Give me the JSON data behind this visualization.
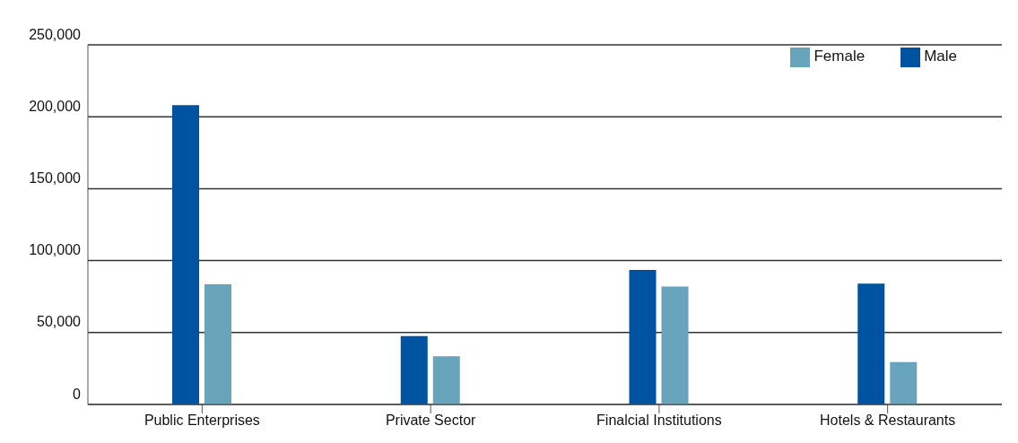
{
  "chart_data": {
    "type": "bar",
    "categories": [
      "Public Enterprises",
      "Private Sector",
      "Finalcial Institutions",
      "Hotels & Restaurants"
    ],
    "series": [
      {
        "name": "Male",
        "color": "#0053a0",
        "values": [
          208000,
          47500,
          93500,
          84000
        ]
      },
      {
        "name": "Female",
        "color": "#68a4bc",
        "values": [
          83500,
          33500,
          82000,
          29500
        ]
      }
    ],
    "ylim": [
      0,
      250000
    ],
    "yticks": [
      {
        "value": 0,
        "label": "0"
      },
      {
        "value": 50000,
        "label": "50,000"
      },
      {
        "value": 100000,
        "label": "100,000"
      },
      {
        "value": 150000,
        "label": "150,000"
      },
      {
        "value": 200000,
        "label": "200,000"
      },
      {
        "value": 250000,
        "label": "250,000"
      }
    ],
    "grid": "y",
    "legend": "top right"
  }
}
